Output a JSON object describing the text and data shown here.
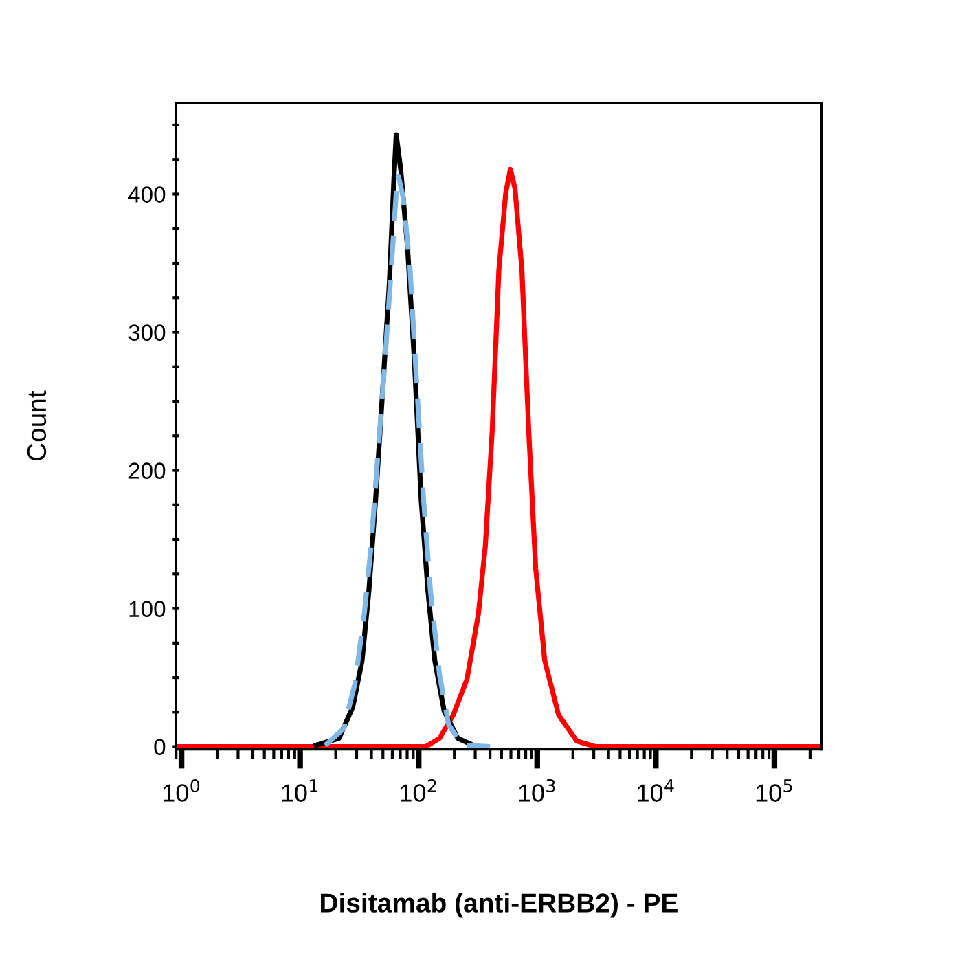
{
  "chart_data": {
    "type": "line",
    "xlabel": "Disitamab (anti-ERBB2) - PE",
    "ylabel": "Count",
    "log": "x",
    "grid": false,
    "marker": "none",
    "xlim": [
      0.9,
      250000
    ],
    "ylim": [
      -2,
      466
    ],
    "xticks": [
      {
        "value": 1,
        "label": "10$^{0}$"
      },
      {
        "value": 10,
        "label": "10$^{1}$"
      },
      {
        "value": 100,
        "label": "10$^{2}$"
      },
      {
        "value": 1000,
        "label": "10$^{3}$"
      },
      {
        "value": 10000,
        "label": "10$^{4}$"
      },
      {
        "value": 100000,
        "label": "10$^{5}$"
      }
    ],
    "yticks": [
      0,
      {
        "value": 25,
        "label": null
      },
      {
        "value": 50,
        "label": null
      },
      {
        "value": 75,
        "label": null
      },
      100,
      {
        "value": 125,
        "label": null
      },
      {
        "value": 150,
        "label": null
      },
      {
        "value": 175,
        "label": null
      },
      200,
      {
        "value": 225,
        "label": null
      },
      {
        "value": 250,
        "label": null
      },
      {
        "value": 275,
        "label": null
      },
      300,
      {
        "value": 325,
        "label": null
      },
      {
        "value": 350,
        "label": null
      },
      {
        "value": 375,
        "label": null
      },
      400,
      {
        "value": 425,
        "label": null
      },
      {
        "value": 450,
        "label": null
      }
    ],
    "series": [
      {
        "color": "#ff0000",
        "line_style": "solid",
        "x": [
          0.9,
          115,
          150,
          196,
          256,
          319,
          365,
          417,
          475,
          543,
          594,
          650,
          743,
          849,
          971,
          1159,
          1514,
          2158,
          3076,
          250000
        ],
        "values": [
          0,
          0,
          6,
          23,
          49,
          96,
          145,
          228,
          345,
          401,
          418,
          404,
          345,
          228,
          129,
          62,
          23,
          4,
          0,
          0
        ]
      },
      {
        "color": "#000000",
        "line_style": "solid",
        "x": [
          13.7,
          21.3,
          27.9,
          33.3,
          38.0,
          43.4,
          49.5,
          56.6,
          61.9,
          64.7,
          70.6,
          80.7,
          92.3,
          105,
          120,
          137,
          164,
          214,
          305
        ],
        "values": [
          1,
          6,
          29,
          62,
          112,
          179,
          255,
          335,
          411,
          443,
          418,
          361,
          278,
          179,
          112,
          62,
          26,
          6,
          0
        ]
      },
      {
        "color": "#7fb8e6",
        "line_style": "dashed",
        "x": [
          16.3,
          23.3,
          29.1,
          34.8,
          39.7,
          45.4,
          51.9,
          59.3,
          64.7,
          67.6,
          73.9,
          84.4,
          96.4,
          110,
          126,
          150,
          179,
          234,
          400
        ],
        "values": [
          1,
          13,
          46,
          96,
          145,
          212,
          278,
          351,
          401,
          413,
          398,
          348,
          262,
          179,
          112,
          52,
          16,
          1,
          0
        ]
      }
    ]
  }
}
